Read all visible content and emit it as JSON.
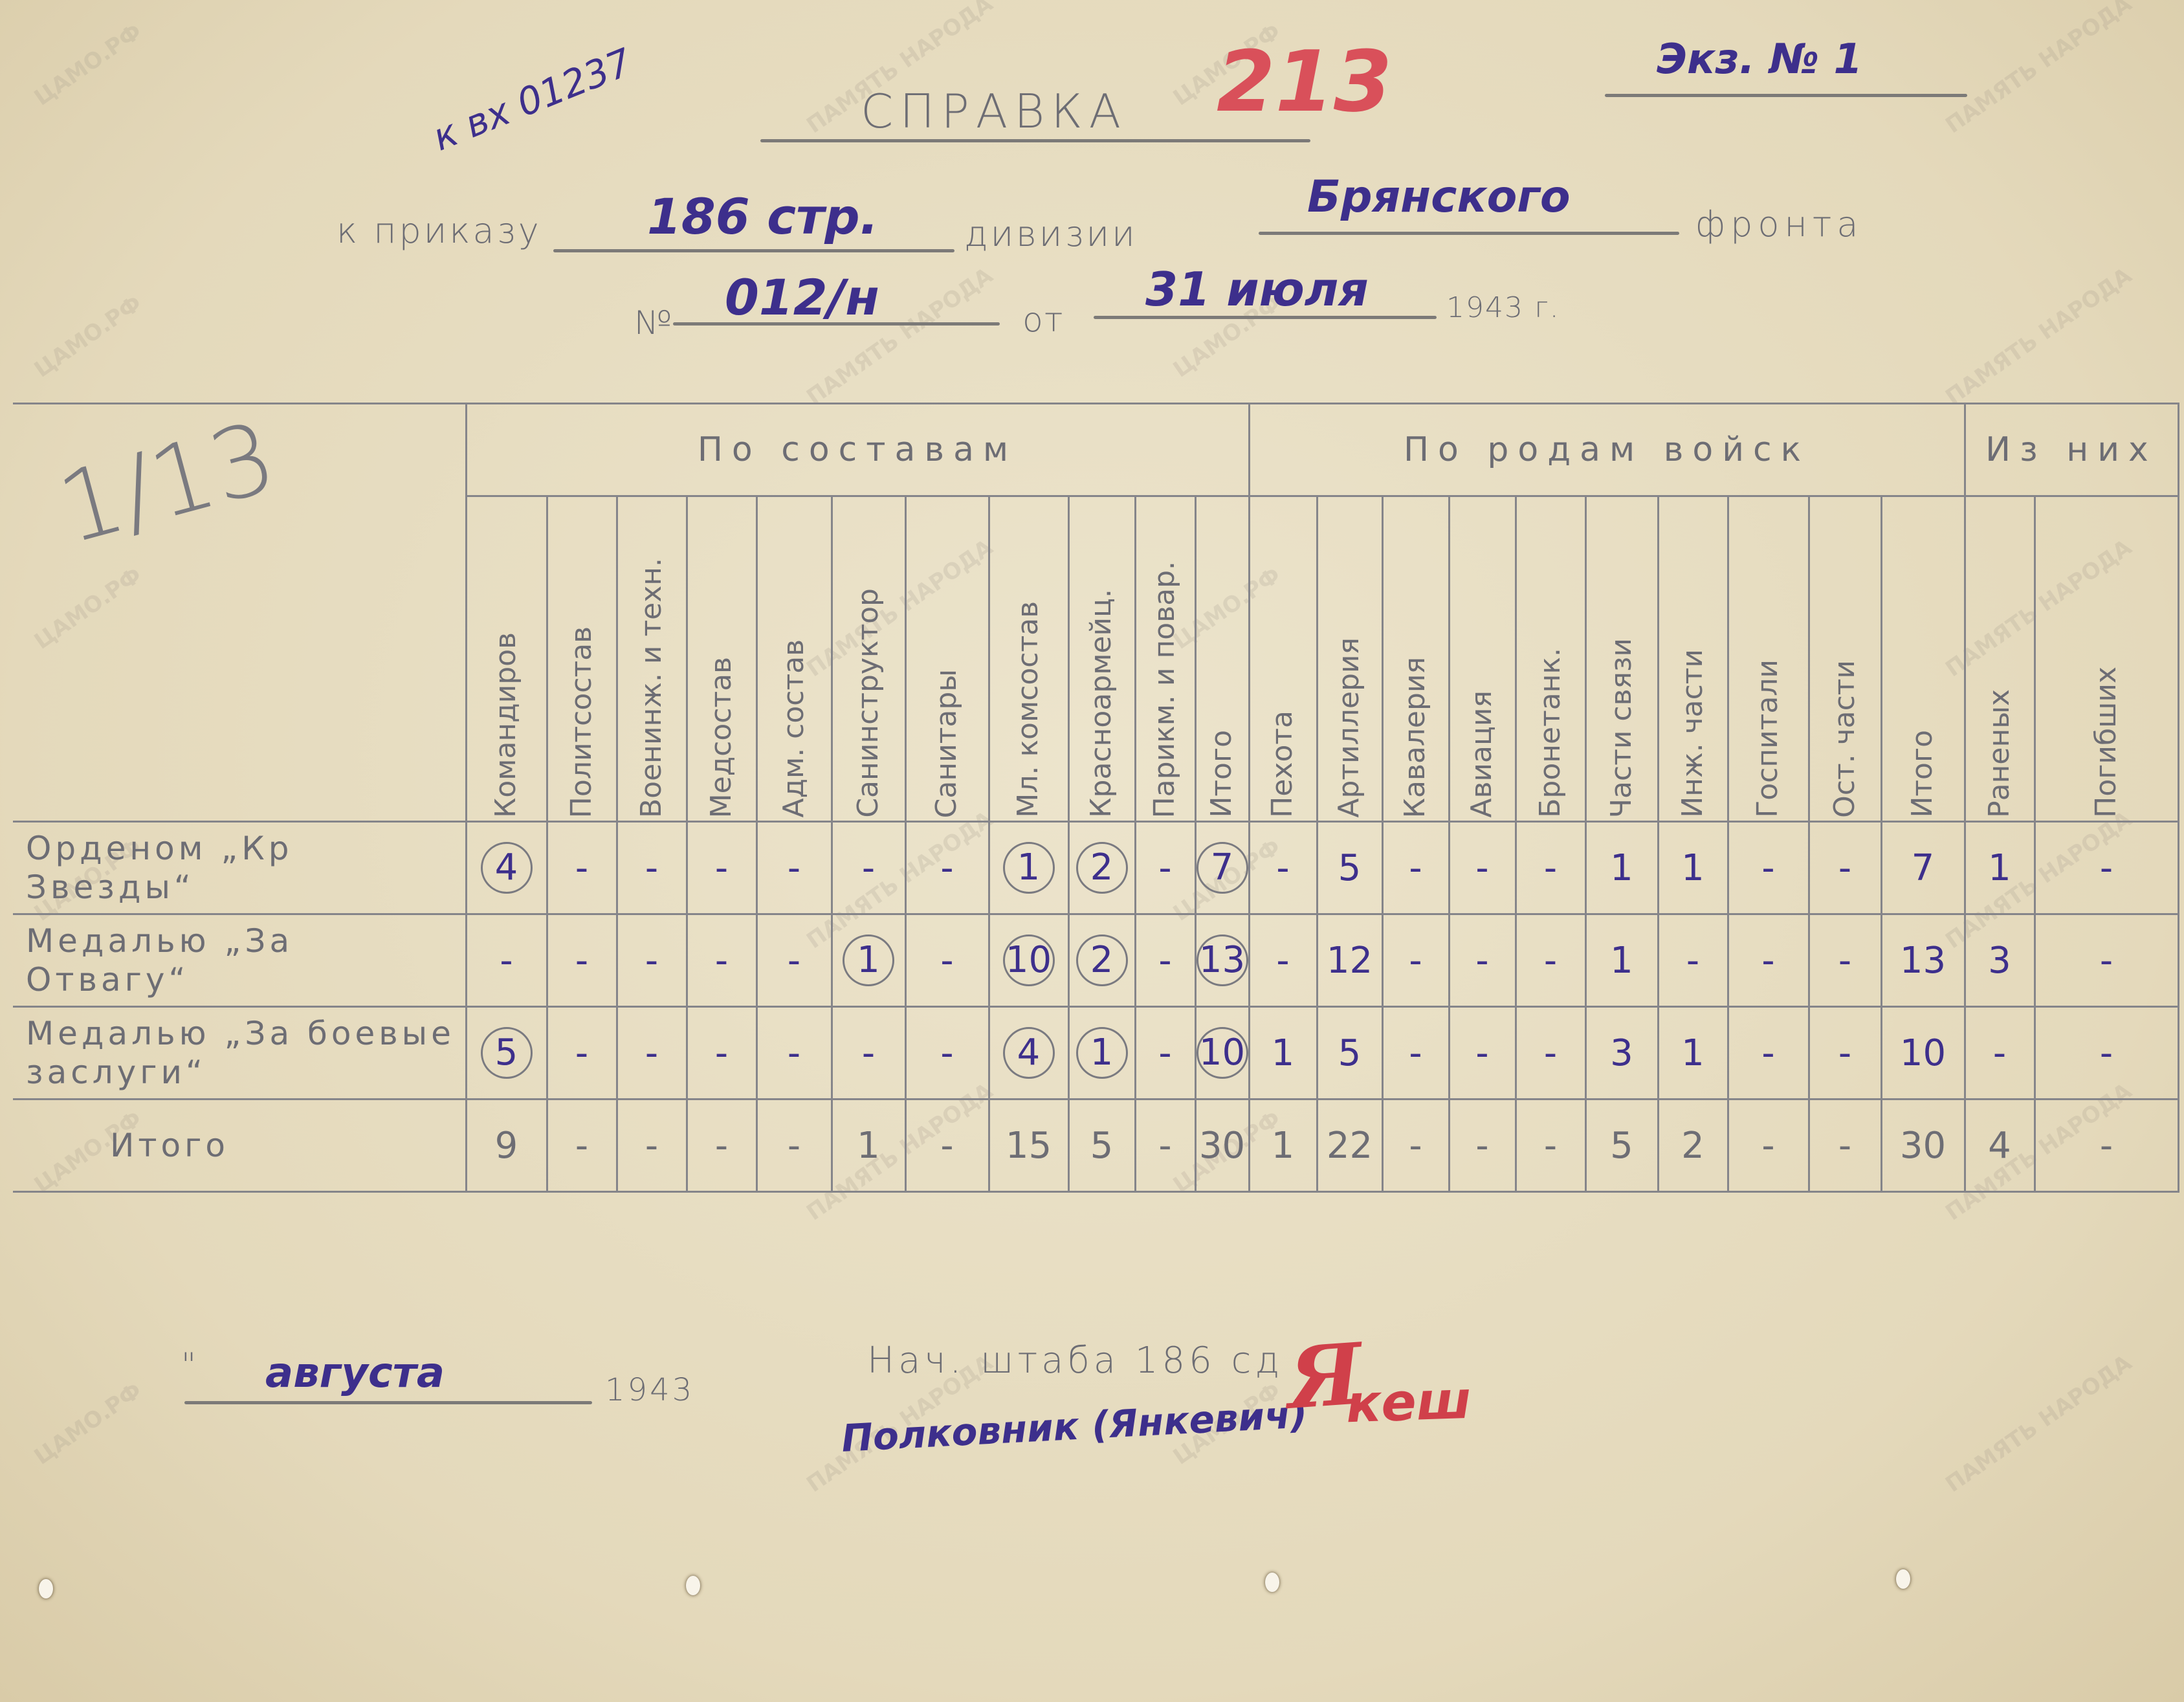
{
  "header": {
    "incoming_note": "к вх 01237",
    "red_number": "213",
    "copy_label": "Экз. № 1",
    "title": "СПРАВКА",
    "to_order_label": "к приказу",
    "division_value": "186 стр.",
    "division_label": "дивизии",
    "front_value": "Брянского",
    "front_label": "фронта",
    "number_label": "№",
    "number_value": "012/н",
    "date_from_label": "от",
    "date_value": "31 июля",
    "year_label": "1943 г.",
    "margin_mark": "1/13"
  },
  "table": {
    "groups": [
      {
        "label": "По составам",
        "span": 11
      },
      {
        "label": "По родам войск",
        "span": 10
      },
      {
        "label": "Из них",
        "span": 2
      }
    ],
    "columns": [
      "Командиров",
      "Политсостав",
      "Военинж. и техн.",
      "Медсостав",
      "Адм. состав",
      "Санинструктор",
      "Санитары",
      "Мл. комсостав",
      "Красноармейц.",
      "Парикм. и повар.",
      "Итого",
      "Пехота",
      "Артиллерия",
      "Кавалерия",
      "Авиация",
      "Бронетанк.",
      "Части связи",
      "Инж. части",
      "Госпитали",
      "Ост. части",
      "Итого",
      "Раненых",
      "Погибших"
    ],
    "rows": [
      {
        "label": "Орденом „Кр Звезды“",
        "values": [
          "4",
          "-",
          "-",
          "-",
          "-",
          "-",
          "-",
          "1",
          "2",
          "-",
          "7",
          "-",
          "5",
          "-",
          "-",
          "-",
          "1",
          "1",
          "-",
          "-",
          "7",
          "1",
          "-"
        ],
        "circled": [
          0,
          7,
          8,
          10
        ]
      },
      {
        "label": "Медалью „За Отвагу“",
        "values": [
          "-",
          "-",
          "-",
          "-",
          "-",
          "1",
          "-",
          "10",
          "2",
          "-",
          "13",
          "-",
          "12",
          "-",
          "-",
          "-",
          "1",
          "-",
          "-",
          "-",
          "13",
          "3",
          "-"
        ],
        "circled": [
          5,
          7,
          8,
          10
        ]
      },
      {
        "label": "Медалью „За боевые заслуги“",
        "values": [
          "5",
          "-",
          "-",
          "-",
          "-",
          "-",
          "-",
          "4",
          "1",
          "-",
          "10",
          "1",
          "5",
          "-",
          "-",
          "-",
          "3",
          "1",
          "-",
          "-",
          "10",
          "-",
          "-"
        ],
        "circled": [
          0,
          7,
          8,
          10
        ]
      },
      {
        "label": "Итого",
        "values": [
          "9",
          "-",
          "-",
          "-",
          "-",
          "1",
          "-",
          "15",
          "5",
          "-",
          "30",
          "1",
          "22",
          "-",
          "-",
          "-",
          "5",
          "2",
          "-",
          "-",
          "30",
          "4",
          "-"
        ],
        "circled": [],
        "total": true
      }
    ]
  },
  "footer": {
    "date_quote": "\"",
    "month_value": "августа",
    "year_label": "1943",
    "chief_label": "Нач. штаба 186 сд",
    "rank_name": "Полковник (Янкевич)",
    "signature": "Янкевич"
  },
  "watermarks": [
    "ЦАМО.РФ",
    "ПАМЯТЬ НАРОДА"
  ],
  "colors": {
    "paper": "#e6dcc0",
    "ink": "#3d2f8c",
    "pencil": "#6d6d74",
    "red_pencil": "#d9505a"
  }
}
